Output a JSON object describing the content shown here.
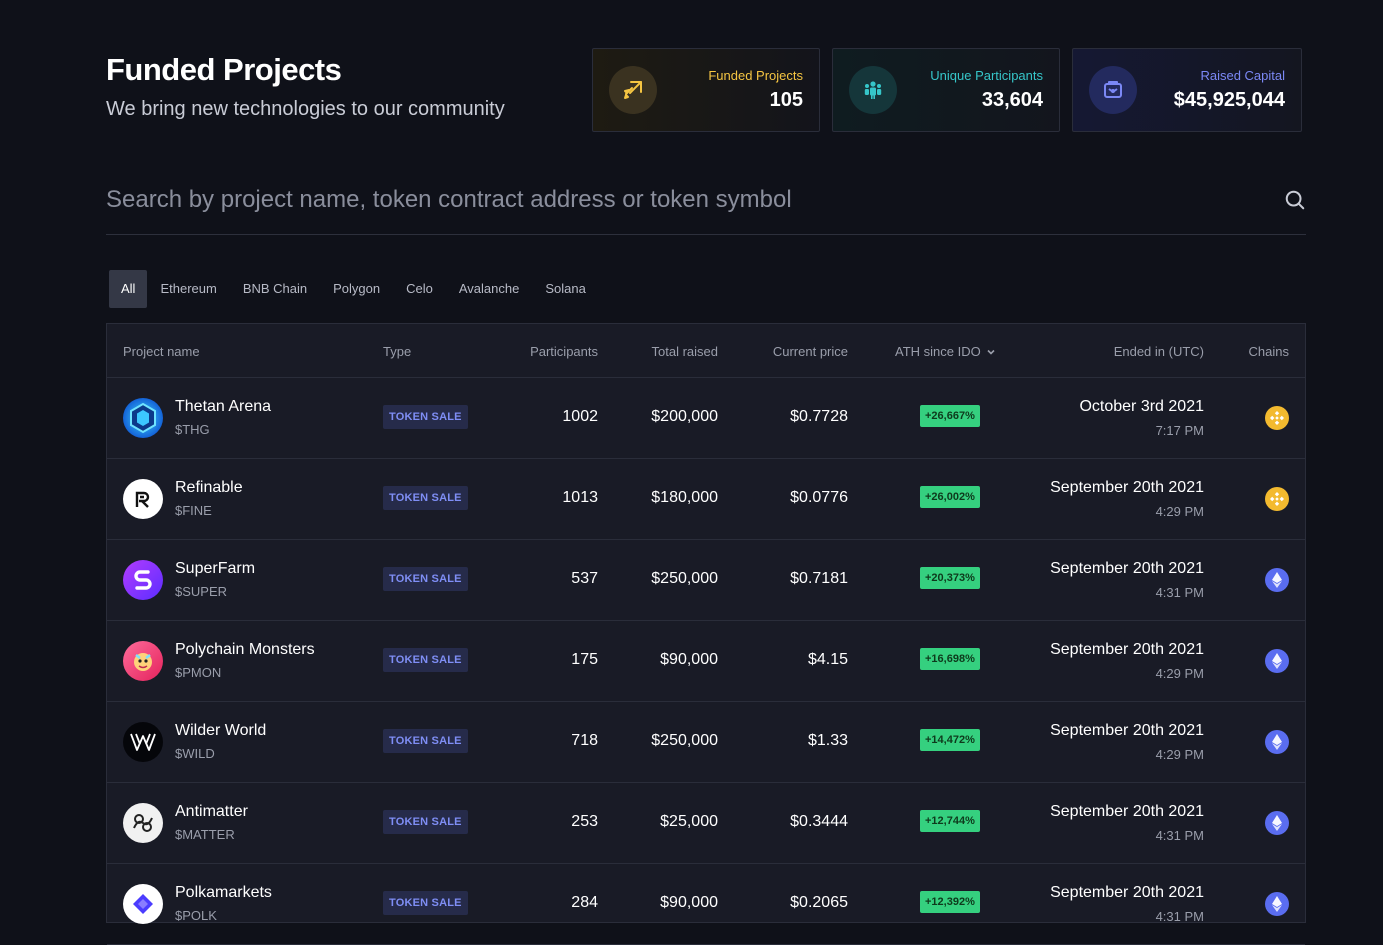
{
  "header": {
    "title": "Funded Projects",
    "subtitle": "We bring new technologies to our community"
  },
  "stats": [
    {
      "label": "Funded Projects",
      "value": "105",
      "icon": "rocket-icon",
      "color": "#f5c542"
    },
    {
      "label": "Unique Participants",
      "value": "33,604",
      "icon": "people-icon",
      "color": "#36c6c9"
    },
    {
      "label": "Raised Capital",
      "value": "$45,925,044",
      "icon": "wallet-icon",
      "color": "#7b88f5"
    }
  ],
  "search": {
    "placeholder": "Search by project name, token contract address or token symbol",
    "value": ""
  },
  "tabs": [
    "All",
    "Ethereum",
    "BNB Chain",
    "Polygon",
    "Celo",
    "Avalanche",
    "Solana"
  ],
  "table": {
    "headers": {
      "project": "Project name",
      "type": "Type",
      "participants": "Participants",
      "raised": "Total raised",
      "price": "Current price",
      "ath": "ATH since IDO",
      "ended": "Ended in (UTC)",
      "chains": "Chains"
    },
    "rows": [
      {
        "name": "Thetan Arena",
        "symbol": "$THG",
        "type": "TOKEN SALE",
        "participants": "1002",
        "raised": "$200,000",
        "price": "$0.7728",
        "ath": "+26,667%",
        "date": "October 3rd 2021",
        "time": "7:17 PM",
        "chain": "bnb"
      },
      {
        "name": "Refinable",
        "symbol": "$FINE",
        "type": "TOKEN SALE",
        "participants": "1013",
        "raised": "$180,000",
        "price": "$0.0776",
        "ath": "+26,002%",
        "date": "September 20th 2021",
        "time": "4:29 PM",
        "chain": "bnb"
      },
      {
        "name": "SuperFarm",
        "symbol": "$SUPER",
        "type": "TOKEN SALE",
        "participants": "537",
        "raised": "$250,000",
        "price": "$0.7181",
        "ath": "+20,373%",
        "date": "September 20th 2021",
        "time": "4:31 PM",
        "chain": "eth"
      },
      {
        "name": "Polychain Monsters",
        "symbol": "$PMON",
        "type": "TOKEN SALE",
        "participants": "175",
        "raised": "$90,000",
        "price": "$4.15",
        "ath": "+16,698%",
        "date": "September 20th 2021",
        "time": "4:29 PM",
        "chain": "eth"
      },
      {
        "name": "Wilder World",
        "symbol": "$WILD",
        "type": "TOKEN SALE",
        "participants": "718",
        "raised": "$250,000",
        "price": "$1.33",
        "ath": "+14,472%",
        "date": "September 20th 2021",
        "time": "4:29 PM",
        "chain": "eth"
      },
      {
        "name": "Antimatter",
        "symbol": "$MATTER",
        "type": "TOKEN SALE",
        "participants": "253",
        "raised": "$25,000",
        "price": "$0.3444",
        "ath": "+12,744%",
        "date": "September 20th 2021",
        "time": "4:31 PM",
        "chain": "eth"
      },
      {
        "name": "Polkamarkets",
        "symbol": "$POLK",
        "type": "TOKEN SALE",
        "participants": "284",
        "raised": "$90,000",
        "price": "$0.2065",
        "ath": "+12,392%",
        "date": "September 20th 2021",
        "time": "4:31 PM",
        "chain": "eth"
      }
    ]
  }
}
